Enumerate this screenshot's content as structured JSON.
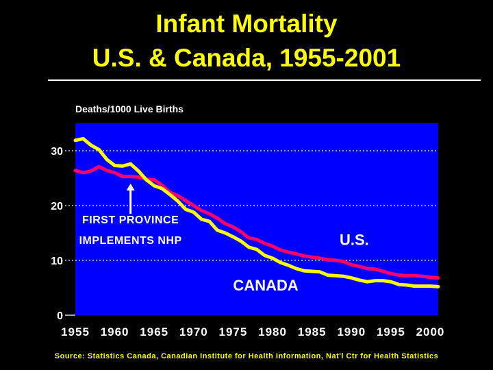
{
  "header": {
    "title_line1": "Infant Mortality",
    "title_line2": "U.S. & Canada, 1955-2001"
  },
  "footer": {
    "source": "Source: Statistics Canada, Canadian Institute for Health Information, Nat'l Ctr for Health Statistics"
  },
  "colors": {
    "background": "#000000",
    "plot_background": "#0000ff",
    "title": "#ffff00",
    "us_series": "#ff0066",
    "canada_series": "#ffff00",
    "text": "#ffffff",
    "grid": "#ffffff"
  },
  "chart_data": {
    "type": "line",
    "title": "",
    "ylabel": "Deaths/1000 Live Births",
    "xlabel": "",
    "xlim": [
      1955,
      2001
    ],
    "ylim": [
      0,
      35
    ],
    "yticks": [
      0,
      10,
      20,
      30
    ],
    "xticks": [
      1955,
      1960,
      1965,
      1970,
      1975,
      1980,
      1985,
      1990,
      1995,
      2000
    ],
    "grid": "horizontal dotted at 10, 20, 30",
    "series": [
      {
        "name": "U.S.",
        "color": "#ff0066",
        "x": [
          1955,
          1956,
          1957,
          1958,
          1959,
          1960,
          1961,
          1962,
          1963,
          1964,
          1965,
          1966,
          1967,
          1968,
          1969,
          1970,
          1971,
          1972,
          1973,
          1974,
          1975,
          1976,
          1977,
          1978,
          1979,
          1980,
          1981,
          1982,
          1983,
          1984,
          1985,
          1986,
          1987,
          1988,
          1989,
          1990,
          1991,
          1992,
          1993,
          1994,
          1995,
          1996,
          1997,
          1998,
          1999,
          2000,
          2001
        ],
        "y": [
          26.4,
          26.0,
          26.3,
          27.1,
          26.4,
          26.0,
          25.3,
          25.3,
          25.2,
          24.8,
          24.7,
          23.7,
          22.4,
          21.8,
          20.9,
          20.0,
          19.1,
          18.5,
          17.7,
          16.7,
          16.1,
          15.2,
          14.1,
          13.8,
          13.1,
          12.6,
          11.9,
          11.5,
          11.2,
          10.8,
          10.6,
          10.4,
          10.1,
          10.0,
          9.8,
          9.2,
          8.9,
          8.5,
          8.4,
          8.0,
          7.6,
          7.3,
          7.2,
          7.2,
          7.1,
          6.9,
          6.8
        ]
      },
      {
        "name": "CANADA",
        "color": "#ffff00",
        "x": [
          1955,
          1956,
          1957,
          1958,
          1959,
          1960,
          1961,
          1962,
          1963,
          1964,
          1965,
          1966,
          1967,
          1968,
          1969,
          1970,
          1971,
          1972,
          1973,
          1974,
          1975,
          1976,
          1977,
          1978,
          1979,
          1980,
          1981,
          1982,
          1983,
          1984,
          1985,
          1986,
          1987,
          1988,
          1989,
          1990,
          1991,
          1992,
          1993,
          1994,
          1995,
          1996,
          1997,
          1998,
          1999,
          2000,
          2001
        ],
        "y": [
          31.9,
          32.2,
          31.0,
          30.2,
          28.4,
          27.3,
          27.2,
          27.6,
          26.3,
          24.7,
          23.6,
          23.1,
          22.0,
          20.8,
          19.3,
          18.8,
          17.5,
          17.1,
          15.5,
          15.0,
          14.3,
          13.5,
          12.4,
          12.0,
          10.9,
          10.4,
          9.6,
          9.1,
          8.5,
          8.1,
          8.0,
          7.9,
          7.3,
          7.2,
          7.1,
          6.8,
          6.4,
          6.1,
          6.3,
          6.3,
          6.1,
          5.6,
          5.5,
          5.3,
          5.3,
          5.3,
          5.2
        ]
      }
    ],
    "series_labels": {
      "us": "U.S.",
      "canada": "CANADA"
    },
    "annotation": {
      "line1": "FIRST PROVINCE",
      "line2": "IMPLEMENTS NHP",
      "year": 1962,
      "arrow_top_value": 24,
      "arrow_bottom_value": 18.5
    }
  }
}
